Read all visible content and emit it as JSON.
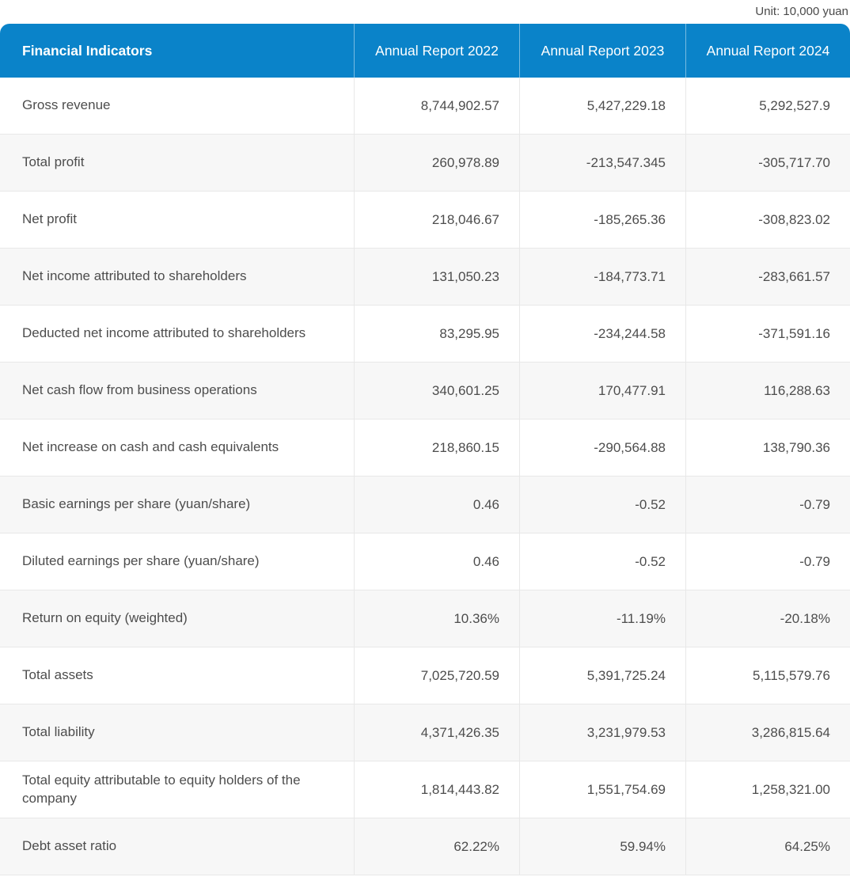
{
  "unit_label": "Unit: 10,000 yuan",
  "chart_data": {
    "type": "table",
    "title": "Financial Indicators by Annual Report",
    "unit": "10,000 yuan",
    "columns": [
      "Financial Indicators",
      "Annual Report 2022",
      "Annual Report 2023",
      "Annual Report 2024"
    ],
    "rows": [
      {
        "label": "Gross revenue",
        "values": [
          "8,744,902.57",
          "5,427,229.18",
          "5,292,527.9"
        ]
      },
      {
        "label": "Total profit",
        "values": [
          "260,978.89",
          "-213,547.345",
          "-305,717.70"
        ]
      },
      {
        "label": "Net profit",
        "values": [
          "218,046.67",
          "-185,265.36",
          "-308,823.02"
        ]
      },
      {
        "label": "Net income attributed to shareholders",
        "values": [
          "131,050.23",
          "-184,773.71",
          "-283,661.57"
        ]
      },
      {
        "label": "Deducted net income attributed to shareholders",
        "values": [
          "83,295.95",
          "-234,244.58",
          "-371,591.16"
        ]
      },
      {
        "label": "Net cash flow from business operations",
        "values": [
          "340,601.25",
          "170,477.91",
          "116,288.63"
        ]
      },
      {
        "label": "Net increase on cash and cash equivalents",
        "values": [
          "218,860.15",
          "-290,564.88",
          "138,790.36"
        ]
      },
      {
        "label": "Basic earnings per share (yuan/share)",
        "values": [
          "0.46",
          "-0.52",
          "-0.79"
        ]
      },
      {
        "label": "Diluted earnings per share (yuan/share)",
        "values": [
          "0.46",
          "-0.52",
          "-0.79"
        ]
      },
      {
        "label": "Return on equity (weighted)",
        "values": [
          "10.36%",
          "-11.19%",
          "-20.18%"
        ]
      },
      {
        "label": "Total assets",
        "values": [
          "7,025,720.59",
          "5,391,725.24",
          "5,115,579.76"
        ]
      },
      {
        "label": "Total liability",
        "values": [
          "4,371,426.35",
          "3,231,979.53",
          "3,286,815.64"
        ]
      },
      {
        "label": "Total equity attributable to equity holders of the company",
        "values": [
          "1,814,443.82",
          "1,551,754.69",
          "1,258,321.00"
        ]
      },
      {
        "label": "Debt asset ratio",
        "values": [
          "62.22%",
          "59.94%",
          "64.25%"
        ]
      }
    ]
  },
  "colors": {
    "header_bg": "#0a83c9",
    "header_text": "#ffffff",
    "row_stripe_bg": "#f7f7f7",
    "row_bg": "#ffffff",
    "border": "#e8e8e8",
    "text": "#4d4d4d"
  }
}
